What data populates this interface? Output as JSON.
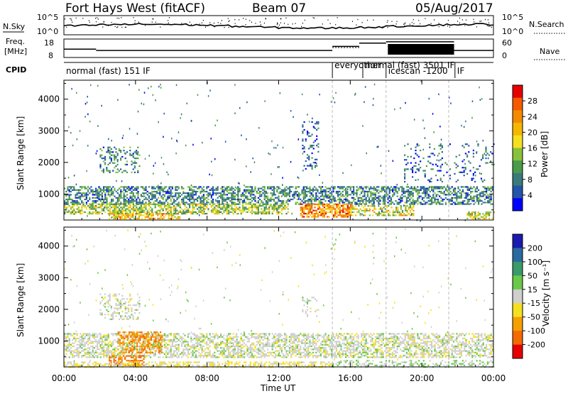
{
  "header": {
    "station": "Fort Hays West (fitACF)",
    "beam": "Beam 07",
    "date": "05/Aug/2017"
  },
  "noise_panel": {
    "left_label": "N.Sky",
    "right_label": "N.Search",
    "ticks": [
      "10^5",
      "10^0"
    ]
  },
  "freq_panel": {
    "label_line1": "Freq.",
    "label_line2": "[MHz]",
    "freq_ticks": [
      "18",
      "8"
    ],
    "nave_label": "Nave",
    "nave_ticks": [
      "60",
      "0"
    ]
  },
  "cpid": {
    "label": "CPID",
    "programs": [
      {
        "text": "normal (fast) 151 IF",
        "start_hour": 0.0
      },
      {
        "text": "everyother",
        "start_hour": 15.0
      },
      {
        "text": "normal (fast) 3501 IF",
        "start_hour": 16.7
      },
      {
        "text": "icescan -1200",
        "start_hour": 18.0
      },
      {
        "text": "IF",
        "start_hour": 21.85
      }
    ]
  },
  "power_panel": {
    "ylabel": "Slant Range [km]",
    "yticks": [
      "4000",
      "3000",
      "2000",
      "1000"
    ],
    "colorbar_title": "Power [dB]",
    "colorbar_ticks": [
      "28",
      "24",
      "20",
      "16",
      "12",
      "8",
      "4"
    ],
    "colors": [
      "#0000ff",
      "#2255aa",
      "#3a7a7a",
      "#4a9b4a",
      "#88c23a",
      "#f5e020",
      "#f5b800",
      "#f58a00",
      "#f55a00",
      "#e60000"
    ]
  },
  "velocity_panel": {
    "ylabel": "Slant Range [km]",
    "yticks": [
      "4000",
      "3000",
      "2000",
      "1000"
    ],
    "colorbar_title": "Velocity [m s⁻¹]",
    "colorbar_ticks": [
      "200",
      "100",
      "50",
      "15",
      "-15",
      "-50",
      "-100",
      "-200"
    ],
    "colors": [
      "#1a1ab0",
      "#2a6aa0",
      "#3a9a6a",
      "#6ac84a",
      "#cfcfcf",
      "#f5e020",
      "#f5a000",
      "#f56a00",
      "#e60000"
    ]
  },
  "xaxis": {
    "label": "Time UT",
    "ticks": [
      "00:00",
      "04:00",
      "08:00",
      "12:00",
      "16:00",
      "20:00",
      "00:00"
    ]
  },
  "chart_data": {
    "type": "heatmap",
    "title": "Fort Hays West (fitACF)",
    "x_range_hours": [
      0,
      24
    ],
    "y_range_km": [
      180,
      4600
    ],
    "dashed_time_markers_hours": [
      15.0,
      18.0,
      21.5
    ],
    "power_regions": [
      {
        "t0": 0.0,
        "t1": 24.0,
        "r0": 700,
        "r1": 1250,
        "dB": 10,
        "density": 0.55
      },
      {
        "t0": 0.0,
        "t1": 12.5,
        "r0": 400,
        "r1": 700,
        "dB": 16,
        "density": 0.6
      },
      {
        "t0": 2.5,
        "t1": 6.5,
        "r0": 250,
        "r1": 400,
        "dB": 22,
        "density": 0.6
      },
      {
        "t0": 2.0,
        "t1": 4.2,
        "r0": 1700,
        "r1": 2500,
        "dB": 10,
        "density": 0.3
      },
      {
        "t0": 13.2,
        "t1": 16.0,
        "r0": 300,
        "r1": 700,
        "dB": 24,
        "density": 0.7
      },
      {
        "t0": 16.0,
        "t1": 19.5,
        "r0": 350,
        "r1": 650,
        "dB": 18,
        "density": 0.45
      },
      {
        "t0": 13.3,
        "t1": 14.2,
        "r0": 1800,
        "r1": 3300,
        "dB": 8,
        "density": 0.2
      },
      {
        "t0": 19.0,
        "t1": 24.0,
        "r0": 1400,
        "r1": 2600,
        "dB": 8,
        "density": 0.12
      },
      {
        "t0": 22.5,
        "t1": 24.0,
        "r0": 250,
        "r1": 450,
        "dB": 18,
        "density": 0.5
      }
    ],
    "velocity_regions": [
      {
        "t0": 0.0,
        "t1": 24.0,
        "r0": 500,
        "r1": 1250,
        "vel": 0,
        "density": 0.55
      },
      {
        "t0": 2.5,
        "t1": 4.5,
        "r0": 250,
        "r1": 550,
        "vel": -120,
        "density": 0.6
      },
      {
        "t0": 3.0,
        "t1": 5.5,
        "r0": 650,
        "r1": 1300,
        "vel": -100,
        "density": 0.5
      },
      {
        "t0": 0.0,
        "t1": 15.0,
        "r0": 180,
        "r1": 350,
        "vel": -30,
        "density": 0.5
      },
      {
        "t0": 2.0,
        "t1": 4.2,
        "r0": 1700,
        "r1": 2500,
        "vel": 0,
        "density": 0.3
      },
      {
        "t0": 13.3,
        "t1": 14.2,
        "r0": 1800,
        "r1": 2400,
        "vel": 0,
        "density": 0.2
      },
      {
        "t0": 15.0,
        "t1": 24.0,
        "r0": 180,
        "r1": 400,
        "vel": 20,
        "density": 0.3
      }
    ]
  }
}
